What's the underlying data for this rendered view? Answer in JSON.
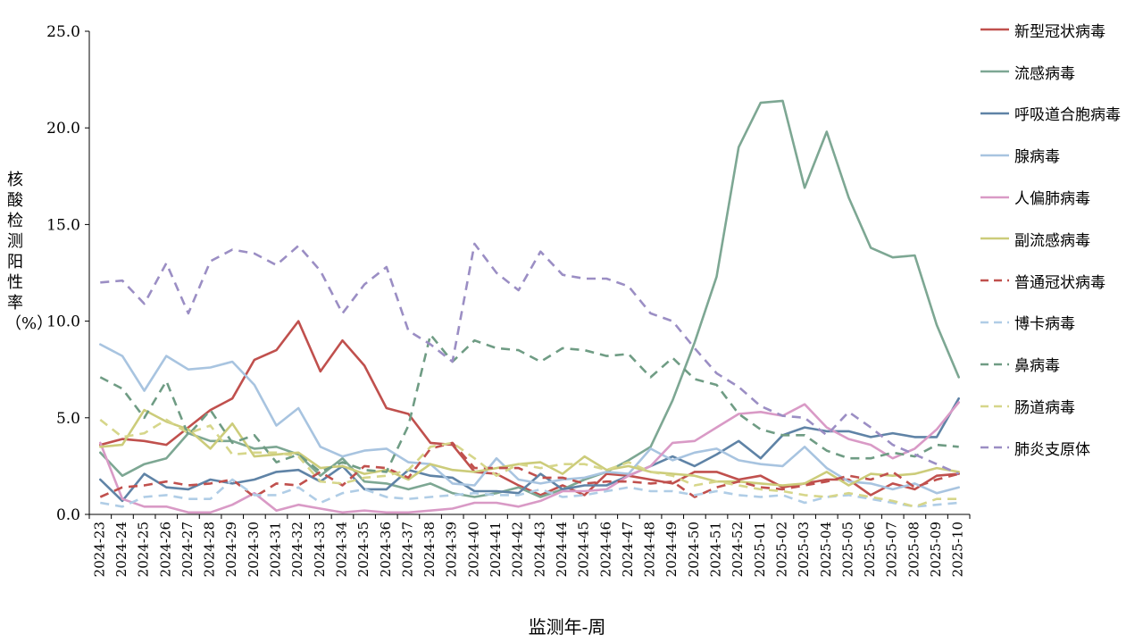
{
  "chart_data": {
    "type": "line",
    "xlabel": "监测年-周",
    "ylabel": "核酸检测阳性率（%）",
    "ylim": [
      0,
      25
    ],
    "yticks": [
      "0.0",
      "5.0",
      "10.0",
      "15.0",
      "20.0",
      "25.0"
    ],
    "grid": false,
    "legend_position": "right",
    "x": [
      "2024-23",
      "2024-24",
      "2024-25",
      "2024-26",
      "2024-27",
      "2024-28",
      "2024-29",
      "2024-30",
      "2024-31",
      "2024-32",
      "2024-33",
      "2024-34",
      "2024-35",
      "2024-36",
      "2024-37",
      "2024-38",
      "2024-39",
      "2024-40",
      "2024-41",
      "2024-42",
      "2024-43",
      "2024-44",
      "2024-45",
      "2024-46",
      "2024-47",
      "2024-48",
      "2024-49",
      "2024-50",
      "2024-51",
      "2024-52",
      "2025-01",
      "2025-02",
      "2025-03",
      "2025-04",
      "2025-05",
      "2025-06",
      "2025-07",
      "2025-08",
      "2025-09",
      "2025-10"
    ],
    "series": [
      {
        "name": "新型冠状病毒",
        "color": "#c0504d",
        "dash": false,
        "values": [
          3.6,
          3.9,
          3.8,
          3.6,
          4.5,
          5.4,
          6.0,
          8.0,
          8.5,
          10.0,
          7.4,
          9.0,
          7.7,
          5.5,
          5.2,
          3.7,
          3.6,
          2.2,
          2.1,
          1.5,
          1.0,
          1.5,
          1.0,
          2.1,
          2.0,
          1.8,
          1.6,
          2.2,
          2.2,
          1.8,
          2.0,
          1.4,
          1.6,
          1.8,
          1.8,
          1.0,
          1.6,
          1.3,
          2.0,
          2.1
        ]
      },
      {
        "name": "流感病毒",
        "color": "#7da793",
        "dash": false,
        "values": [
          3.2,
          2.0,
          2.6,
          2.9,
          4.2,
          3.8,
          3.8,
          3.4,
          3.5,
          3.1,
          2.0,
          2.9,
          1.7,
          1.6,
          1.3,
          1.6,
          1.1,
          0.9,
          1.1,
          1.4,
          0.9,
          1.3,
          1.8,
          2.2,
          2.8,
          3.5,
          5.9,
          8.9,
          12.3,
          19.0,
          21.3,
          21.4,
          16.9,
          19.8,
          16.4,
          13.8,
          13.3,
          13.4,
          9.8,
          7.1
        ]
      },
      {
        "name": "呼吸道合胞病毒",
        "color": "#5f83a6",
        "dash": false,
        "values": [
          1.8,
          0.7,
          2.1,
          1.4,
          1.3,
          1.8,
          1.6,
          1.8,
          2.2,
          2.3,
          1.7,
          2.5,
          1.3,
          1.3,
          2.3,
          2.0,
          1.9,
          1.2,
          1.2,
          1.1,
          2.1,
          1.3,
          1.5,
          1.5,
          2.0,
          2.5,
          3.0,
          2.5,
          3.1,
          3.8,
          2.9,
          4.1,
          4.5,
          4.3,
          4.3,
          4.0,
          4.2,
          4.0,
          4.0,
          6.0
        ]
      },
      {
        "name": "腺病毒",
        "color": "#a8c4e0",
        "dash": false,
        "values": [
          8.8,
          8.2,
          6.4,
          8.2,
          7.5,
          7.6,
          7.9,
          6.7,
          4.6,
          5.5,
          3.5,
          3.0,
          3.3,
          3.4,
          2.7,
          2.6,
          1.6,
          1.5,
          2.9,
          1.8,
          1.6,
          1.8,
          1.9,
          2.2,
          2.1,
          3.4,
          2.8,
          3.2,
          3.4,
          2.8,
          2.6,
          2.5,
          3.5,
          2.4,
          1.7,
          1.6,
          1.3,
          1.6,
          1.1,
          1.4
        ]
      },
      {
        "name": "人偏肺病毒",
        "color": "#d99ac6",
        "dash": false,
        "values": [
          3.7,
          0.8,
          0.4,
          0.4,
          0.1,
          0.1,
          0.5,
          1.1,
          0.2,
          0.5,
          0.3,
          0.1,
          0.2,
          0.1,
          0.1,
          0.2,
          0.3,
          0.6,
          0.6,
          0.4,
          0.7,
          1.2,
          1.2,
          1.3,
          2.0,
          2.5,
          3.7,
          3.8,
          4.5,
          5.2,
          5.3,
          5.1,
          5.7,
          4.5,
          3.9,
          3.6,
          2.9,
          3.4,
          4.4,
          5.8
        ]
      },
      {
        "name": "副流感病毒",
        "color": "#cccc7a",
        "dash": false,
        "values": [
          3.5,
          3.6,
          5.4,
          4.8,
          4.4,
          3.4,
          4.7,
          3.0,
          3.1,
          3.2,
          2.4,
          2.5,
          2.1,
          2.3,
          1.8,
          2.6,
          2.3,
          2.2,
          2.4,
          2.6,
          2.7,
          2.1,
          3.0,
          2.3,
          2.5,
          2.2,
          2.1,
          2.0,
          1.7,
          1.7,
          1.6,
          1.5,
          1.6,
          2.2,
          1.5,
          2.1,
          2.0,
          2.1,
          2.4,
          2.2
        ]
      },
      {
        "name": "普通冠状病毒",
        "color": "#c0504d",
        "dash": true,
        "values": [
          0.9,
          1.4,
          1.5,
          1.7,
          1.5,
          1.6,
          1.8,
          0.9,
          1.6,
          1.5,
          2.2,
          1.5,
          2.5,
          2.4,
          1.9,
          3.4,
          3.7,
          2.4,
          2.4,
          2.4,
          1.9,
          1.9,
          1.6,
          1.7,
          1.7,
          1.6,
          1.7,
          0.9,
          1.4,
          1.7,
          1.4,
          1.3,
          1.5,
          1.7,
          2.0,
          1.8,
          2.2,
          1.4,
          1.8,
          2.1
        ]
      },
      {
        "name": "博卡病毒",
        "color": "#b0cde6",
        "dash": true,
        "values": [
          0.6,
          0.4,
          0.9,
          1.0,
          0.8,
          0.8,
          1.8,
          1.0,
          1.0,
          1.4,
          0.6,
          1.1,
          1.3,
          0.9,
          0.8,
          0.9,
          1.0,
          1.1,
          1.0,
          1.0,
          1.3,
          0.9,
          1.0,
          1.2,
          1.4,
          1.2,
          1.2,
          1.0,
          1.2,
          1.0,
          0.9,
          1.0,
          0.6,
          0.9,
          1.0,
          0.8,
          0.6,
          0.4,
          0.5,
          0.6
        ]
      },
      {
        "name": "鼻病毒",
        "color": "#6f9c84",
        "dash": true,
        "values": [
          7.1,
          6.5,
          5.0,
          6.9,
          4.1,
          5.4,
          3.7,
          4.1,
          2.7,
          3.1,
          2.2,
          2.7,
          2.3,
          2.2,
          4.6,
          9.3,
          7.9,
          9.0,
          8.6,
          8.5,
          7.9,
          8.6,
          8.5,
          8.2,
          8.3,
          7.1,
          8.1,
          7.0,
          6.7,
          5.2,
          4.4,
          4.1,
          4.1,
          3.3,
          2.9,
          2.9,
          3.2,
          3.0,
          3.6,
          3.5
        ]
      },
      {
        "name": "肠道病毒",
        "color": "#d6d68a",
        "dash": true,
        "values": [
          4.9,
          4.0,
          4.2,
          4.9,
          4.2,
          4.6,
          3.1,
          3.2,
          3.2,
          3.0,
          1.7,
          1.6,
          1.9,
          2.0,
          2.3,
          3.5,
          3.7,
          2.9,
          2.0,
          2.6,
          2.4,
          2.6,
          2.6,
          2.3,
          2.7,
          2.2,
          2.0,
          1.5,
          1.7,
          1.5,
          1.3,
          1.2,
          1.0,
          0.9,
          1.1,
          0.9,
          0.7,
          0.4,
          0.8,
          0.8
        ]
      },
      {
        "name": "肺炎支原体",
        "color": "#9b8ec4",
        "dash": true,
        "values": [
          12.0,
          12.1,
          10.9,
          13.0,
          10.4,
          13.1,
          13.7,
          13.5,
          12.9,
          13.9,
          12.6,
          10.4,
          11.9,
          12.8,
          9.5,
          8.8,
          7.9,
          14.0,
          12.5,
          11.6,
          13.6,
          12.4,
          12.2,
          12.2,
          11.8,
          10.4,
          10.0,
          8.6,
          7.3,
          6.6,
          5.6,
          5.1,
          5.0,
          4.1,
          5.3,
          4.5,
          3.6,
          3.1,
          2.6,
          2.1
        ]
      }
    ]
  }
}
